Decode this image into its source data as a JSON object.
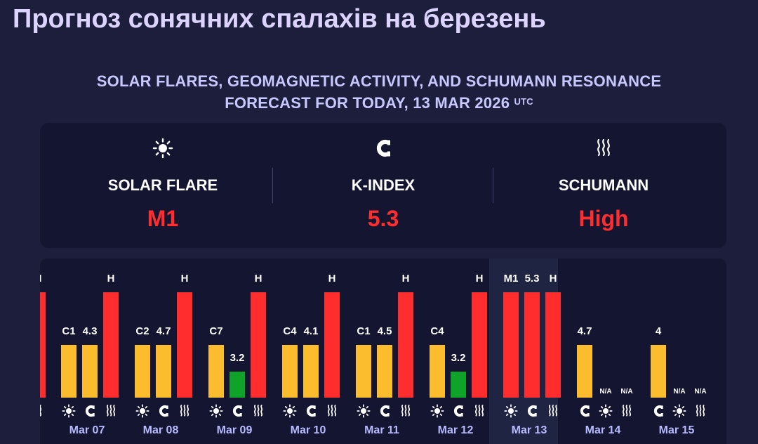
{
  "page_title": "Прогноз сонячних спалахів на березень",
  "subtitle": {
    "line1": "SOLAR FLARES, GEOMAGNETIC ACTIVITY, AND SCHUMANN RESONANCE",
    "line2": "FORECAST FOR TODAY, 13 MAR 2026",
    "utc": "UTC"
  },
  "summary": [
    {
      "label": "SOLAR FLARE",
      "value": "M1",
      "icon": "sun-icon"
    },
    {
      "label": "K-INDEX",
      "value": "5.3",
      "icon": "magnet-icon"
    },
    {
      "label": "SCHUMANN",
      "value": "High",
      "icon": "waves-icon"
    }
  ],
  "colors": {
    "red": "#ff2d2d",
    "orange": "#fbbd2e",
    "green": "#0fa32a",
    "day_label": "#b8bbff"
  },
  "chart_data": {
    "type": "bar",
    "title": "",
    "series_keys": [
      "solar_flare",
      "k_index",
      "schumann"
    ],
    "categories": [
      "Mar 07",
      "Mar 08",
      "Mar 09",
      "Mar 10",
      "Mar 11",
      "Mar 12",
      "Mar 13",
      "Mar 14",
      "Mar 15"
    ],
    "highlight": "Mar 13",
    "days": [
      {
        "date": "Mar 07",
        "bars": [
          {
            "label": "C1",
            "level": 2,
            "color": "orange"
          },
          {
            "label": "4.3",
            "level": 2,
            "color": "orange"
          },
          {
            "label": "H",
            "level": 4,
            "color": "red"
          }
        ]
      },
      {
        "date": "Mar 08",
        "bars": [
          {
            "label": "C2",
            "level": 2,
            "color": "orange"
          },
          {
            "label": "4.7",
            "level": 2,
            "color": "orange"
          },
          {
            "label": "H",
            "level": 4,
            "color": "red"
          }
        ]
      },
      {
        "date": "Mar 09",
        "bars": [
          {
            "label": "C7",
            "level": 2,
            "color": "orange"
          },
          {
            "label": "3.2",
            "level": 1,
            "color": "green"
          },
          {
            "label": "H",
            "level": 4,
            "color": "red"
          }
        ]
      },
      {
        "date": "Mar 10",
        "bars": [
          {
            "label": "C4",
            "level": 2,
            "color": "orange"
          },
          {
            "label": "4.1",
            "level": 2,
            "color": "orange"
          },
          {
            "label": "H",
            "level": 4,
            "color": "red"
          }
        ]
      },
      {
        "date": "Mar 11",
        "bars": [
          {
            "label": "C1",
            "level": 2,
            "color": "orange"
          },
          {
            "label": "4.5",
            "level": 2,
            "color": "orange"
          },
          {
            "label": "H",
            "level": 4,
            "color": "red"
          }
        ]
      },
      {
        "date": "Mar 12",
        "bars": [
          {
            "label": "C4",
            "level": 2,
            "color": "orange"
          },
          {
            "label": "3.2",
            "level": 1,
            "color": "green"
          },
          {
            "label": "H",
            "level": 4,
            "color": "red"
          }
        ]
      },
      {
        "date": "Mar 13",
        "bars": [
          {
            "label": "M1",
            "level": 4,
            "color": "red"
          },
          {
            "label": "5.3",
            "level": 4,
            "color": "red"
          },
          {
            "label": "H",
            "level": 4,
            "color": "red"
          }
        ]
      },
      {
        "date": "Mar 14",
        "bars": [
          {
            "label": "4.7",
            "level": 2,
            "color": "orange"
          },
          {
            "label": "N/A",
            "level": 0,
            "color": "none"
          },
          {
            "label": "N/A",
            "level": 0,
            "color": "none"
          }
        ],
        "icons": [
          "magnet-icon",
          "sun-icon",
          "waves-icon"
        ]
      },
      {
        "date": "Mar 15",
        "bars": [
          {
            "label": "4",
            "level": 2,
            "color": "orange"
          },
          {
            "label": "N/A",
            "level": 0,
            "color": "none"
          },
          {
            "label": "N/A",
            "level": 0,
            "color": "none"
          }
        ],
        "icons": [
          "magnet-icon",
          "sun-icon",
          "waves-icon"
        ]
      }
    ],
    "partial_left_bar": {
      "label": "H",
      "level": 4,
      "color": "red"
    }
  }
}
